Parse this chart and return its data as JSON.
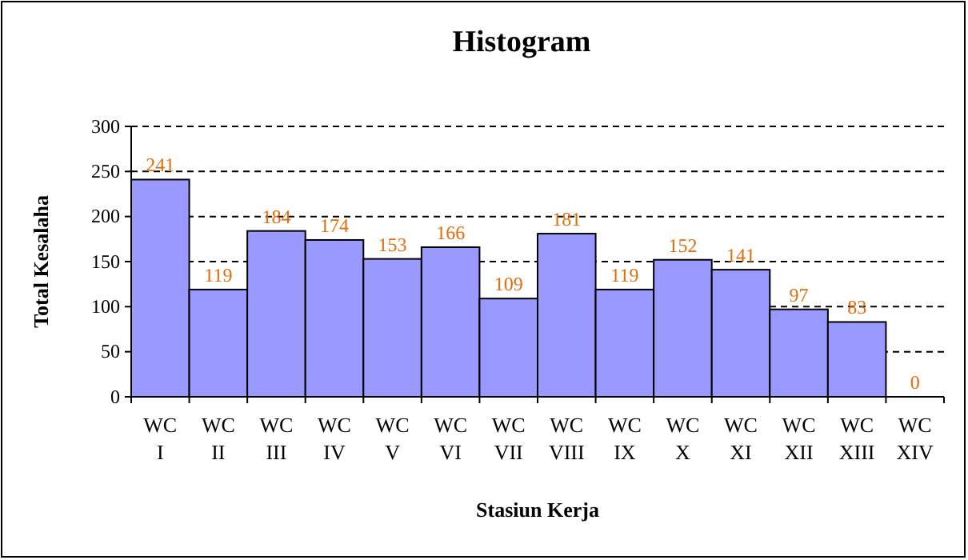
{
  "chart_data": {
    "type": "bar",
    "title": "Histogram",
    "xlabel": "Stasiun Kerja",
    "ylabel": "Total Kesalaha",
    "categories": [
      "WC I",
      "WC II",
      "WC III",
      "WC IV",
      "WC V",
      "WC VI",
      "WC VII",
      "WC VIII",
      "WC IX",
      "WC X",
      "WC XI",
      "WC XII",
      "WC XIII",
      "WC XIV"
    ],
    "values": [
      241,
      119,
      184,
      174,
      153,
      166,
      109,
      181,
      119,
      152,
      141,
      97,
      83,
      0
    ],
    "color": "#9999ff",
    "ylim": [
      0,
      300
    ],
    "yticks": [
      0,
      50,
      100,
      150,
      200,
      250,
      300
    ],
    "grid": "y",
    "data_labels": true
  }
}
